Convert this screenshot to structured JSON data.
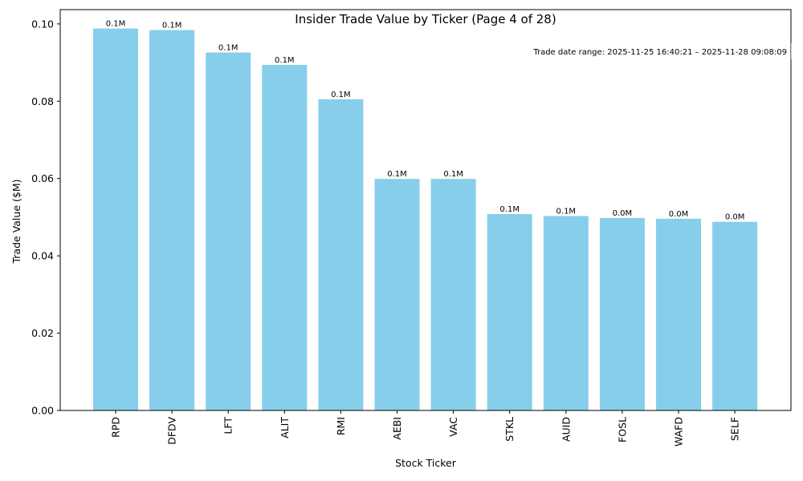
{
  "chart_data": {
    "type": "bar",
    "title": "Insider Trade Value by Ticker (Page 4 of 28)",
    "xlabel": "Stock Ticker",
    "ylabel": "Trade Value ($M)",
    "ylim": [
      0,
      0.1037
    ],
    "yticks": [
      0.0,
      0.02,
      0.04,
      0.06,
      0.08,
      0.1
    ],
    "ytick_labels": [
      "0.00",
      "0.02",
      "0.04",
      "0.06",
      "0.08",
      "0.10"
    ],
    "categories": [
      "RPD",
      "DFDV",
      "LFT",
      "ALIT",
      "RMI",
      "AEBI",
      "VAC",
      "STKL",
      "AUID",
      "FOSL",
      "WAFD",
      "SELF"
    ],
    "values": [
      0.0988,
      0.0984,
      0.0926,
      0.0894,
      0.0805,
      0.0599,
      0.0599,
      0.0508,
      0.0503,
      0.0498,
      0.0496,
      0.0488
    ],
    "data_labels": [
      "0.1M",
      "0.1M",
      "0.1M",
      "0.1M",
      "0.1M",
      "0.1M",
      "0.1M",
      "0.1M",
      "0.1M",
      "0.0M",
      "0.0M",
      "0.0M"
    ],
    "bar_color": "#87ceeb",
    "annotation": "Trade date range: 2025-11-25 16:40:21 – 2025-11-28 09:08:09",
    "grid": false,
    "legend": "none"
  }
}
